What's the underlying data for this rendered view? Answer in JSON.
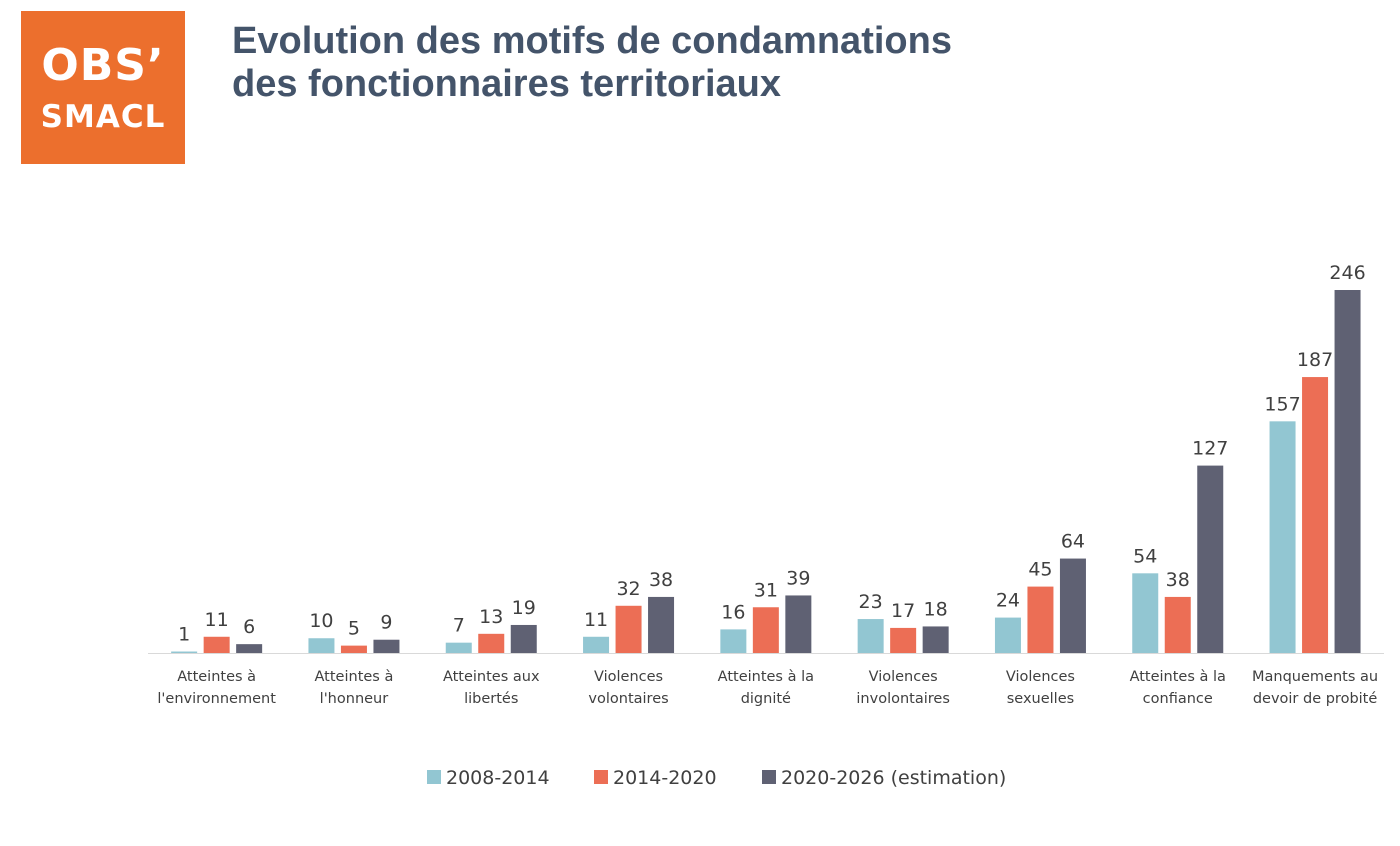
{
  "logo": {
    "line1": "OBS’",
    "line2": "SMACL",
    "color": "#ec6f2d"
  },
  "title": {
    "line1": "Evolution des motifs de condamnations",
    "line2": "des fonctionnaires territoriaux",
    "color": "#44546a"
  },
  "chart_data": {
    "type": "bar",
    "categories": [
      [
        "Atteintes à",
        "l'environnement"
      ],
      [
        "Atteintes à",
        "l'honneur"
      ],
      [
        "Atteintes aux",
        "libertés"
      ],
      [
        "Violences",
        "volontaires"
      ],
      [
        "Atteintes à la",
        "dignité"
      ],
      [
        "Violences",
        "involontaires"
      ],
      [
        "Violences",
        "sexuelles"
      ],
      [
        "Atteintes à la",
        "confiance"
      ],
      [
        "Manquements au",
        "devoir de probité"
      ]
    ],
    "series": [
      {
        "name": "2008-2014",
        "color": "#92c6d2",
        "values": [
          1,
          10,
          7,
          11,
          16,
          23,
          24,
          54,
          157
        ]
      },
      {
        "name": "2014-2020",
        "color": "#ec6e55",
        "values": [
          11,
          5,
          13,
          32,
          31,
          17,
          45,
          38,
          187
        ]
      },
      {
        "name": "2020-2026 (estimation)",
        "color": "#5f6173",
        "values": [
          6,
          9,
          19,
          38,
          39,
          18,
          64,
          127,
          246
        ]
      }
    ],
    "ylim": [
      0,
      246
    ],
    "grid": false,
    "data_labels": true,
    "legend_position": "bottom"
  }
}
